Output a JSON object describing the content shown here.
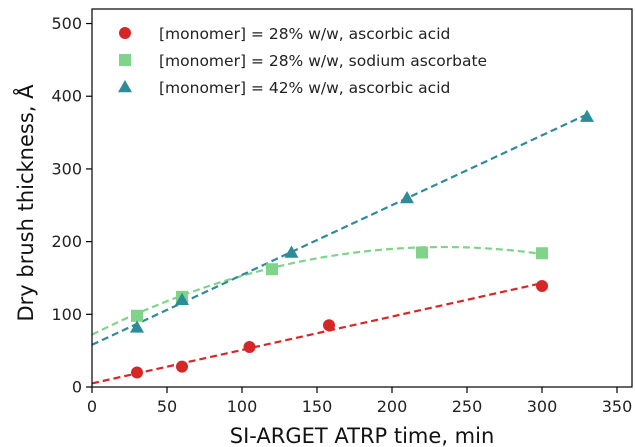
{
  "chart_data": {
    "type": "scatter",
    "xlabel": "SI-ARGET ATRP time, min",
    "ylabel": "Dry brush thickness, Å",
    "xlim": [
      0,
      360
    ],
    "ylim": [
      0,
      520
    ],
    "xticks": [
      0,
      50,
      100,
      150,
      200,
      250,
      300,
      350
    ],
    "yticks": [
      0,
      100,
      200,
      300,
      400,
      500
    ],
    "grid": false,
    "legend_position": "top-left",
    "series": [
      {
        "name": "[monomer] = 28% w/w, ascorbic acid",
        "marker": "circle",
        "color": "#d62728",
        "x": [
          30,
          60,
          105,
          158,
          300
        ],
        "y": [
          20,
          28,
          55,
          85,
          139
        ],
        "fit": {
          "kind": "linear",
          "points": [
            [
              0,
              5
            ],
            [
              300,
              143
            ]
          ]
        }
      },
      {
        "name": "[monomer] = 28% w/w, sodium ascorbate",
        "marker": "square",
        "color": "#7fd48a",
        "x": [
          30,
          60,
          120,
          220,
          300
        ],
        "y": [
          98,
          124,
          162,
          185,
          184
        ],
        "fit": {
          "kind": "quadratic",
          "points": [
            [
              0,
              72
            ],
            [
              150,
              177
            ],
            [
              300,
              183
            ]
          ]
        }
      },
      {
        "name": "[monomer] = 42% w/w, ascorbic acid",
        "marker": "triangle",
        "color": "#2e8b9a",
        "x": [
          30,
          60,
          133,
          210,
          330
        ],
        "y": [
          82,
          120,
          185,
          260,
          372
        ],
        "fit": {
          "kind": "linear",
          "points": [
            [
              0,
              58
            ],
            [
              330,
              375
            ]
          ]
        }
      }
    ]
  }
}
